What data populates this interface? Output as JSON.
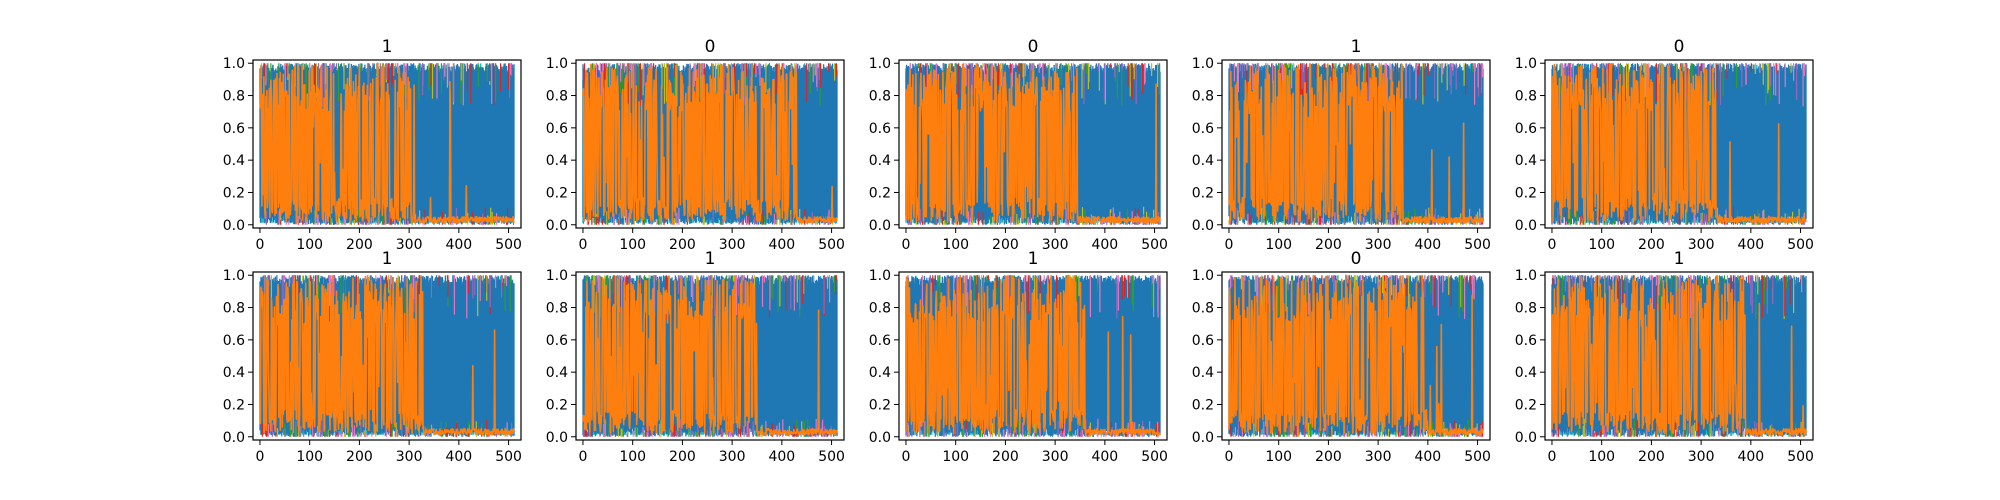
{
  "chart_data": {
    "type": "line",
    "layout": "2x5 grid of small multiples",
    "grid": false,
    "legend": "none",
    "xticks": [
      "0",
      "100",
      "200",
      "300",
      "400",
      "500"
    ],
    "yticks": [
      "0.0",
      "0.2",
      "0.4",
      "0.6",
      "0.8",
      "1.0"
    ],
    "xlim": [
      -14,
      525
    ],
    "ylim": [
      -0.02,
      1.02
    ],
    "palette": [
      "#1f77b4",
      "#ff7f0e",
      "#17becf",
      "#bcbd22",
      "#2ca02c",
      "#d62728",
      "#9467bd",
      "#e377c2"
    ],
    "panels": [
      {
        "title": "1",
        "switch_x": 305
      },
      {
        "title": "0",
        "switch_x": 430
      },
      {
        "title": "0",
        "switch_x": 345
      },
      {
        "title": "1",
        "switch_x": 350
      },
      {
        "title": "0",
        "switch_x": 330
      },
      {
        "title": "1",
        "switch_x": 330
      },
      {
        "title": "1",
        "switch_x": 350
      },
      {
        "title": "1",
        "switch_x": 360
      },
      {
        "title": "0",
        "switch_x": 400
      },
      {
        "title": "1",
        "switch_x": 390
      }
    ]
  }
}
